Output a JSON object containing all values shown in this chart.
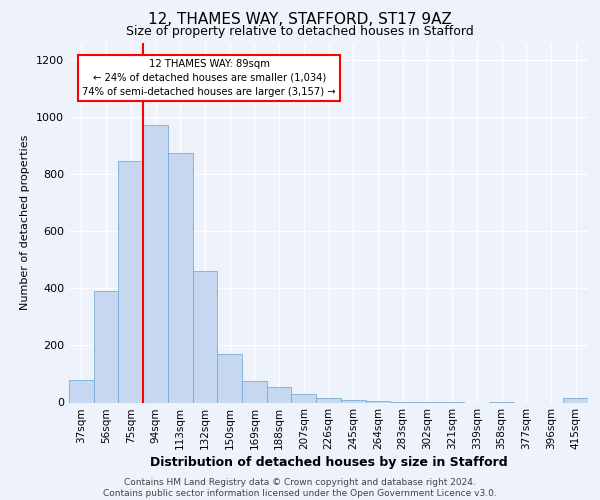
{
  "title_line1": "12, THAMES WAY, STAFFORD, ST17 9AZ",
  "title_line2": "Size of property relative to detached houses in Stafford",
  "xlabel": "Distribution of detached houses by size in Stafford",
  "ylabel": "Number of detached properties",
  "footnote": "Contains HM Land Registry data © Crown copyright and database right 2024.\nContains public sector information licensed under the Open Government Licence v3.0.",
  "categories": [
    "37sqm",
    "56sqm",
    "75sqm",
    "94sqm",
    "113sqm",
    "132sqm",
    "150sqm",
    "169sqm",
    "188sqm",
    "207sqm",
    "226sqm",
    "245sqm",
    "264sqm",
    "283sqm",
    "302sqm",
    "321sqm",
    "339sqm",
    "358sqm",
    "377sqm",
    "396sqm",
    "415sqm"
  ],
  "values": [
    80,
    390,
    845,
    970,
    875,
    460,
    170,
    75,
    55,
    30,
    15,
    10,
    5,
    3,
    2,
    1,
    0,
    1,
    0,
    0,
    15
  ],
  "bar_color": "#c5d8f0",
  "bar_edge_color": "#7aadd4",
  "property_label": "12 THAMES WAY: 89sqm",
  "annotation_line1": "← 24% of detached houses are smaller (1,034)",
  "annotation_line2": "74% of semi-detached houses are larger (3,157) →",
  "red_line_index": 2.5,
  "ylim": [
    0,
    1260
  ],
  "yticks": [
    0,
    200,
    400,
    600,
    800,
    1000,
    1200
  ],
  "background_color": "#eef2fb",
  "plot_bg_color": "#eef2fb",
  "title_fontsize": 11,
  "subtitle_fontsize": 9,
  "ylabel_fontsize": 8,
  "xlabel_fontsize": 9,
  "tick_fontsize": 7.5,
  "footnote_fontsize": 6.5
}
